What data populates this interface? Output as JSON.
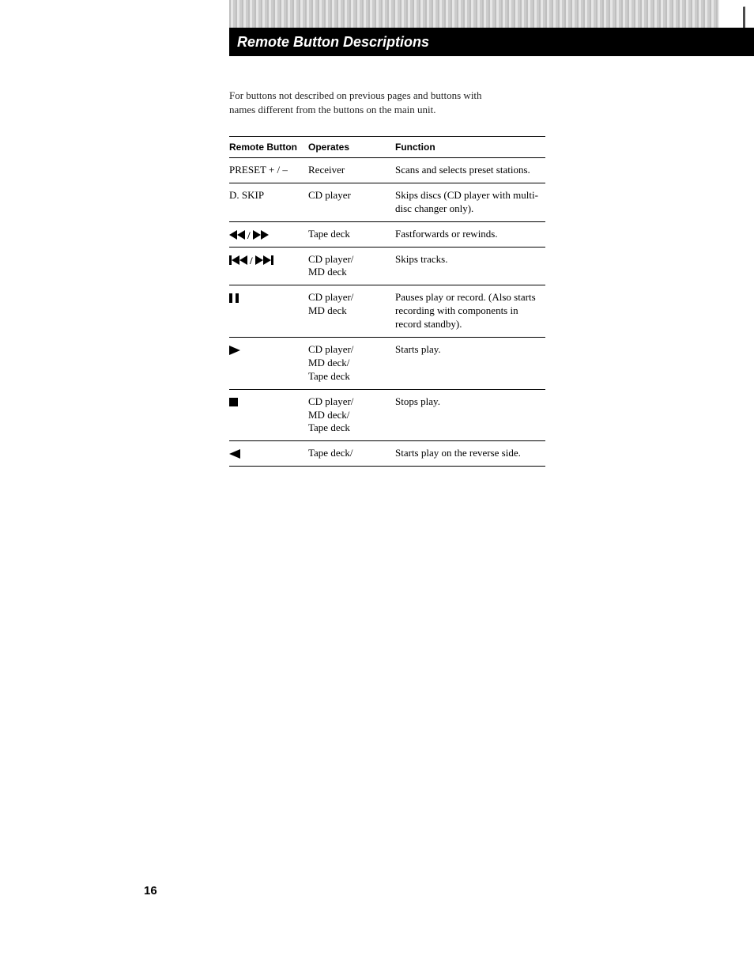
{
  "title": "Remote Button Descriptions",
  "intro": "For buttons not described on previous pages and buttons with names different from the buttons on the main unit.",
  "columns": {
    "button": "Remote Button",
    "operates": "Operates",
    "function": "Function"
  },
  "rows": [
    {
      "button_text": "PRESET + / –",
      "icon": null,
      "operates": "Receiver",
      "function": "Scans and selects preset stations."
    },
    {
      "button_text": "D. SKIP",
      "icon": null,
      "operates": "CD player",
      "function": "Skips discs (CD player with multi-disc changer only)."
    },
    {
      "button_text": null,
      "icon": "rew-ff",
      "operates": "Tape deck",
      "function": "Fastforwards or rewinds."
    },
    {
      "button_text": null,
      "icon": "prev-next",
      "operates": "CD player/\nMD deck",
      "function": "Skips tracks."
    },
    {
      "button_text": null,
      "icon": "pause",
      "operates": "CD player/\nMD deck",
      "function": "Pauses play or record. (Also starts recording with components in record standby)."
    },
    {
      "button_text": null,
      "icon": "play",
      "operates": "CD player/\nMD deck/\nTape deck",
      "function": "Starts play."
    },
    {
      "button_text": null,
      "icon": "stop",
      "operates": "CD player/\nMD deck/\nTape deck",
      "function": "Stops play."
    },
    {
      "button_text": null,
      "icon": "play-rev",
      "operates": "Tape deck/",
      "function": "Starts play on the reverse side."
    }
  ],
  "page_number": "16",
  "icons": {
    "rew-ff": "<svg class=\"icon\" width=\"50\" height=\"12\"><polygon points=\"10,0 0,6 10,12\" fill=\"#000\"/><polygon points=\"20,0 10,6 20,12\" fill=\"#000\"/><text x=\"23\" y=\"11\" font-size=\"13\" font-weight=\"900\">/</text><polygon points=\"30,0 40,6 30,12\" fill=\"#000\"/><polygon points=\"40,0 50,6 40,12\" fill=\"#000\"/></svg>",
    "prev-next": "<svg class=\"icon\" width=\"58\" height=\"12\"><rect x=\"0\" y=\"0\" width=\"3\" height=\"12\" fill=\"#000\"/><polygon points=\"13,0 3,6 13,12\" fill=\"#000\"/><polygon points=\"23,0 13,6 23,12\" fill=\"#000\"/><text x=\"26\" y=\"11\" font-size=\"13\" font-weight=\"900\">/</text><polygon points=\"33,0 43,6 33,12\" fill=\"#000\"/><polygon points=\"43,0 53,6 43,12\" fill=\"#000\"/><rect x=\"53\" y=\"0\" width=\"3\" height=\"12\" fill=\"#000\"/></svg>",
    "pause": "<svg class=\"icon\" width=\"12\" height=\"12\"><rect x=\"0\" y=\"0\" width=\"4\" height=\"12\" fill=\"#000\"/><rect x=\"8\" y=\"0\" width=\"4\" height=\"12\" fill=\"#000\"/></svg>",
    "play": "<svg class=\"icon\" width=\"14\" height=\"12\"><polygon points=\"0,0 14,6 0,12\" fill=\"#000\"/></svg>",
    "stop": "<svg class=\"icon\" width=\"11\" height=\"11\"><rect x=\"0\" y=\"0\" width=\"11\" height=\"11\" fill=\"#000\"/></svg>",
    "play-rev": "<svg class=\"icon\" width=\"14\" height=\"12\"><polygon points=\"14,0 0,6 14,12\" fill=\"#000\"/></svg>"
  }
}
